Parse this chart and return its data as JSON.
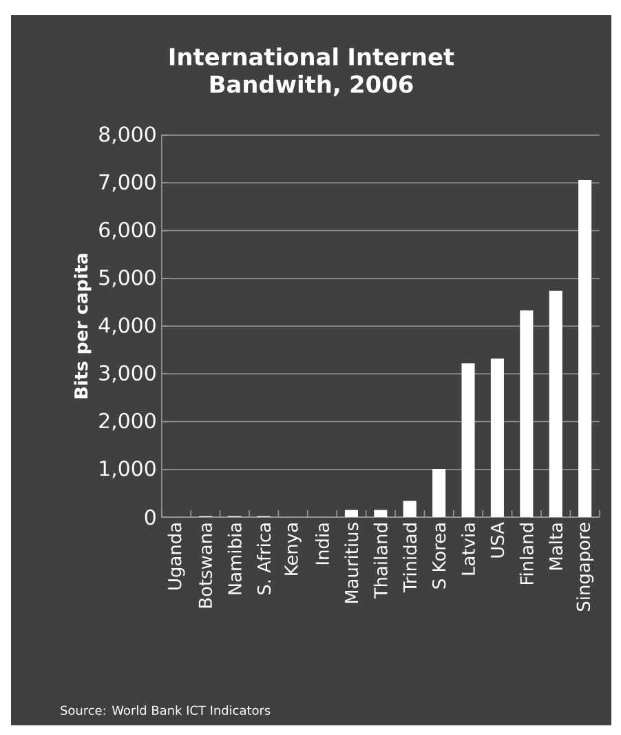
{
  "chart_data": {
    "type": "bar",
    "title": "International Internet Bandwith, 2006",
    "ylabel": "Bits per capita",
    "categories": [
      "Uganda",
      "Botswana",
      "Namibia",
      "S. Africa",
      "Kenya",
      "India",
      "Mauritius",
      "Thailand",
      "Trinidad",
      "S Korea",
      "Latvia",
      "USA",
      "Finland",
      "Malta",
      "Singapore"
    ],
    "values": [
      0,
      20,
      20,
      20,
      0,
      0,
      150,
      150,
      340,
      1010,
      3220,
      3320,
      4330,
      4740,
      7060
    ],
    "color": "#ffffff",
    "ylim": [
      0,
      8000
    ],
    "yticks": [
      0,
      {
        "value": 1000,
        "label": "1,000"
      },
      {
        "value": 2000,
        "label": "2,000"
      },
      {
        "value": 3000,
        "label": "3,000"
      },
      {
        "value": 4000,
        "label": "4,000"
      },
      {
        "value": 5000,
        "label": "5,000"
      },
      {
        "value": 6000,
        "label": "6,000"
      },
      {
        "value": 7000,
        "label": "7,000"
      },
      {
        "value": 8000,
        "label": "8,000"
      }
    ],
    "grid": "y",
    "annotations": [
      "Source: World Bank ICT Indicators"
    ]
  }
}
